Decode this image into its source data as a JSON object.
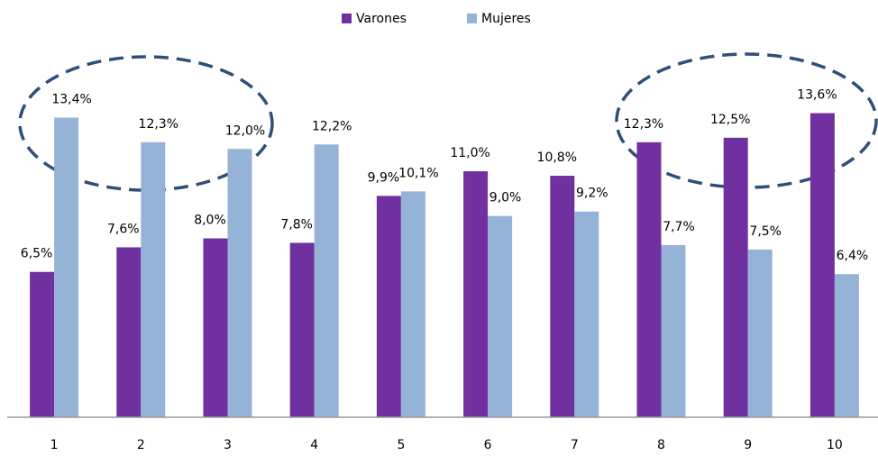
{
  "chart_data": {
    "type": "bar",
    "categories": [
      "1",
      "2",
      "3",
      "4",
      "5",
      "6",
      "7",
      "8",
      "9",
      "10"
    ],
    "series": [
      {
        "name": "Varones",
        "color": "#7030a0",
        "values": [
          6.5,
          7.6,
          8.0,
          7.8,
          9.9,
          11.0,
          10.8,
          12.3,
          12.5,
          13.6
        ],
        "value_labels": [
          "6,5%",
          "7,6%",
          "8,0%",
          "7,8%",
          "9,9%",
          "11,0%",
          "10,8%",
          "12,3%",
          "12,5%",
          "13,6%"
        ]
      },
      {
        "name": "Mujeres",
        "color": "#95b3d7",
        "values": [
          13.4,
          12.3,
          12.0,
          12.2,
          10.1,
          9.0,
          9.2,
          7.7,
          7.5,
          6.4
        ],
        "value_labels": [
          "13,4%",
          "12,3%",
          "12,0%",
          "12,2%",
          "10,1%",
          "9,0%",
          "9,2%",
          "7,7%",
          "7,5%",
          "6,4%"
        ]
      }
    ],
    "ylim": [
      0,
      16
    ],
    "legend": "top"
  }
}
